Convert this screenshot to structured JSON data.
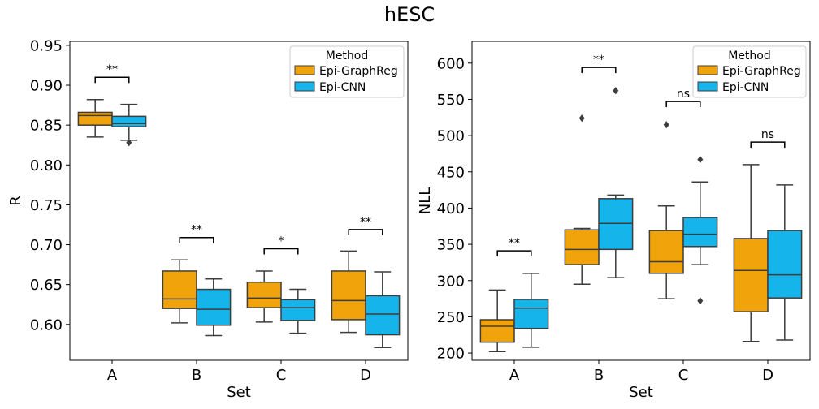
{
  "figure": {
    "title": "hESC"
  },
  "colors": {
    "graphreg": "#f0a30a",
    "cnn": "#15b5ec",
    "edge": "#3d3d3d"
  },
  "chart_data": [
    {
      "type": "box",
      "xlabel": "Set",
      "ylabel": "R",
      "ylim": [
        0.555,
        0.955
      ],
      "yticks": [
        "0.60",
        "0.65",
        "0.70",
        "0.75",
        "0.80",
        "0.85",
        "0.90",
        "0.95"
      ],
      "categories": [
        "A",
        "B",
        "C",
        "D"
      ],
      "legend": {
        "title": "Method",
        "entries": [
          "Epi-GraphReg",
          "Epi-CNN"
        ],
        "position": "top-right"
      },
      "series": [
        {
          "name": "Epi-GraphReg",
          "boxes": [
            {
              "min": 0.835,
              "q1": 0.85,
              "median": 0.862,
              "q3": 0.866,
              "max": 0.882,
              "fliers": []
            },
            {
              "min": 0.602,
              "q1": 0.62,
              "median": 0.632,
              "q3": 0.667,
              "max": 0.681,
              "fliers": []
            },
            {
              "min": 0.603,
              "q1": 0.621,
              "median": 0.633,
              "q3": 0.653,
              "max": 0.667,
              "fliers": []
            },
            {
              "min": 0.59,
              "q1": 0.606,
              "median": 0.63,
              "q3": 0.667,
              "max": 0.692,
              "fliers": []
            }
          ]
        },
        {
          "name": "Epi-CNN",
          "boxes": [
            {
              "min": 0.831,
              "q1": 0.848,
              "median": 0.852,
              "q3": 0.861,
              "max": 0.876,
              "fliers": [
                0.828
              ]
            },
            {
              "min": 0.586,
              "q1": 0.599,
              "median": 0.619,
              "q3": 0.644,
              "max": 0.657,
              "fliers": []
            },
            {
              "min": 0.589,
              "q1": 0.605,
              "median": 0.621,
              "q3": 0.631,
              "max": 0.644,
              "fliers": []
            },
            {
              "min": 0.571,
              "q1": 0.587,
              "median": 0.613,
              "q3": 0.636,
              "max": 0.666,
              "fliers": []
            }
          ]
        }
      ],
      "annotations": [
        {
          "category": "A",
          "label": "**",
          "y": 0.91
        },
        {
          "category": "B",
          "label": "**",
          "y": 0.709
        },
        {
          "category": "C",
          "label": "*",
          "y": 0.695
        },
        {
          "category": "D",
          "label": "**",
          "y": 0.719
        }
      ]
    },
    {
      "type": "box",
      "xlabel": "Set",
      "ylabel": "NLL",
      "ylim": [
        190,
        630
      ],
      "yticks": [
        "200",
        "250",
        "300",
        "350",
        "400",
        "450",
        "500",
        "550",
        "600"
      ],
      "categories": [
        "A",
        "B",
        "C",
        "D"
      ],
      "legend": {
        "title": "Method",
        "entries": [
          "Epi-GraphReg",
          "Epi-CNN"
        ],
        "position": "top-right"
      },
      "series": [
        {
          "name": "Epi-GraphReg",
          "boxes": [
            {
              "min": 202,
              "q1": 215,
              "median": 237,
              "q3": 246,
              "max": 287,
              "fliers": []
            },
            {
              "min": 295,
              "q1": 322,
              "median": 343,
              "q3": 370,
              "max": 372,
              "fliers": [
                524
              ]
            },
            {
              "min": 275,
              "q1": 310,
              "median": 326,
              "q3": 369,
              "max": 403,
              "fliers": [
                515
              ]
            },
            {
              "min": 216,
              "q1": 257,
              "median": 314,
              "q3": 358,
              "max": 460,
              "fliers": []
            }
          ]
        },
        {
          "name": "Epi-CNN",
          "boxes": [
            {
              "min": 208,
              "q1": 234,
              "median": 262,
              "q3": 274,
              "max": 310,
              "fliers": []
            },
            {
              "min": 304,
              "q1": 343,
              "median": 379,
              "q3": 413,
              "max": 418,
              "fliers": [
                562
              ]
            },
            {
              "min": 322,
              "q1": 347,
              "median": 364,
              "q3": 387,
              "max": 436,
              "fliers": [
                272,
                467
              ]
            },
            {
              "min": 218,
              "q1": 276,
              "median": 308,
              "q3": 369,
              "max": 432,
              "fliers": []
            }
          ]
        }
      ],
      "annotations": [
        {
          "category": "A",
          "label": "**",
          "y": 341
        },
        {
          "category": "B",
          "label": "**",
          "y": 594
        },
        {
          "category": "C",
          "label": "ns",
          "y": 547
        },
        {
          "category": "D",
          "label": "ns",
          "y": 491
        }
      ]
    }
  ]
}
